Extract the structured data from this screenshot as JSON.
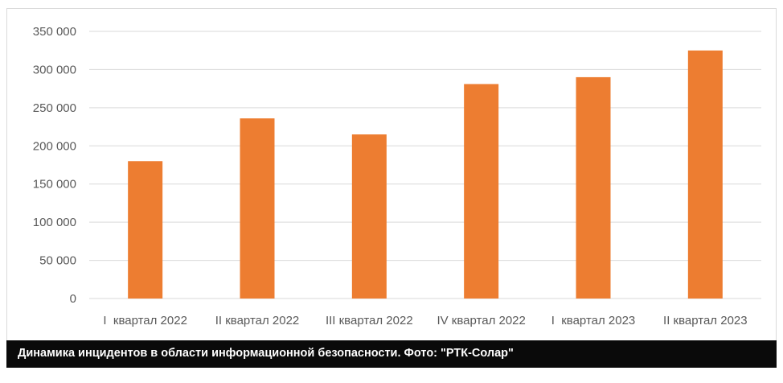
{
  "chart_data": {
    "type": "bar",
    "categories": [
      "I  квартал 2022",
      "II квартал 2022",
      "III квартал 2022",
      "IV квартал 2022",
      "I  квартал 2023",
      "II квартал 2023"
    ],
    "values": [
      180000,
      236000,
      215000,
      281000,
      290000,
      325000
    ],
    "ylim": [
      0,
      350000
    ],
    "yticks": [
      0,
      50000,
      100000,
      150000,
      200000,
      250000,
      300000,
      350000
    ],
    "ytick_labels": [
      "0",
      "50 000",
      "100 000",
      "150 000",
      "200 000",
      "250 000",
      "300 000",
      "350 000"
    ],
    "grid": true,
    "legend": "none",
    "bar_color": "#ED7D31",
    "grid_color": "#D9D9D9",
    "title": "",
    "xlabel": "",
    "ylabel": ""
  },
  "caption": {
    "text": "Динамика инцидентов в области информационной безопасности. Фото: \"РТК-Солар\""
  }
}
